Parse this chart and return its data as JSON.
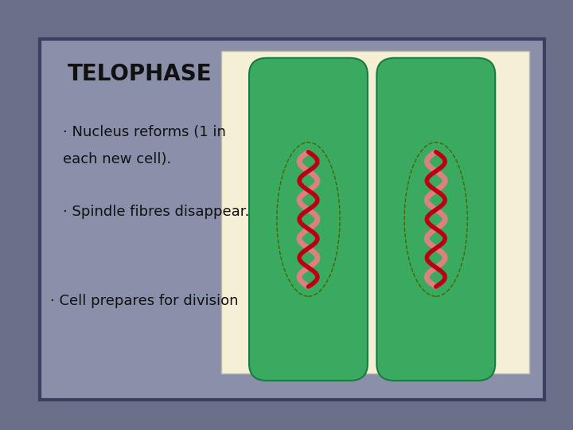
{
  "title": "TELOPHASE",
  "bullet1_line1": "· Nucleus reforms (1 in",
  "bullet1_line2": "each new cell).",
  "bullet2": "· Spindle fibres disappear.",
  "bullet3": "· Cell prepares for division",
  "bg_outer": "#6a6f8a",
  "bg_slide": "#8a90aa",
  "border_color": "#3a3f60",
  "panel_bg": "#f5f0d5",
  "cell_color": "#3aaa60",
  "cell_border": "#1a7a40",
  "nucleus_dash_color": "#446600",
  "chromosome_dark": "#bb0011",
  "chromosome_light": "#dd8080",
  "title_fontsize": 20,
  "bullet_fontsize": 13,
  "text_color": "#111111"
}
